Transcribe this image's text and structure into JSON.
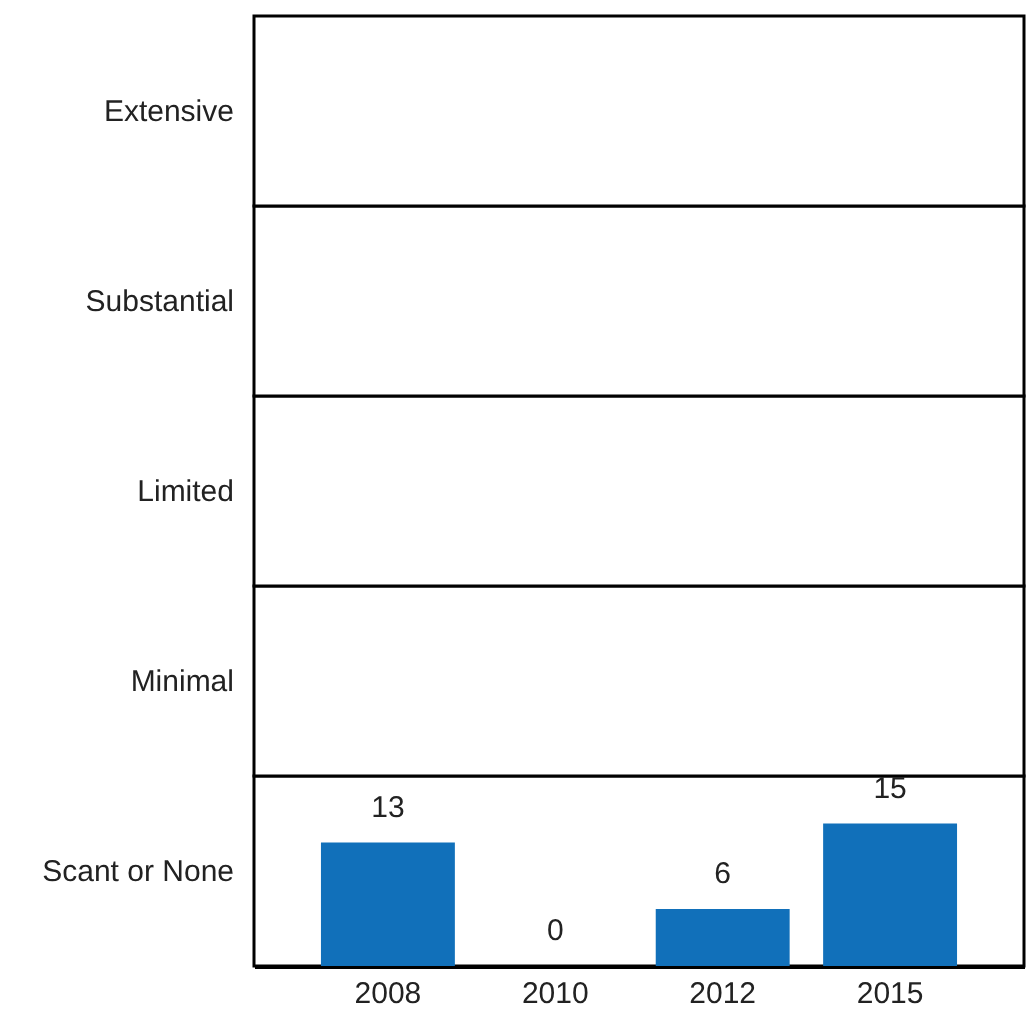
{
  "chart_data": {
    "type": "bar",
    "categories": [
      "2008",
      "2010",
      "2012",
      "2015"
    ],
    "series": [
      {
        "color": "#1170ba",
        "values": [
          13,
          0,
          6,
          15
        ]
      }
    ],
    "ylim": [
      0,
      100
    ],
    "tick_labels": "x",
    "data_labels": true,
    "bands": [
      {
        "axis": "y",
        "from": 0,
        "to": 20,
        "label": "Scant or None",
        "color": "#ffffff"
      },
      {
        "axis": "y",
        "from": 20,
        "to": 40,
        "label": "Minimal",
        "color": "#ffffff"
      },
      {
        "axis": "y",
        "from": 40,
        "to": 60,
        "label": "Limited",
        "color": "#ffffff"
      },
      {
        "axis": "y",
        "from": 60,
        "to": 80,
        "label": "Substantial",
        "color": "#ffffff"
      },
      {
        "axis": "y",
        "from": 80,
        "to": 100,
        "label": "Extensive",
        "color": "#ffffff"
      }
    ]
  }
}
